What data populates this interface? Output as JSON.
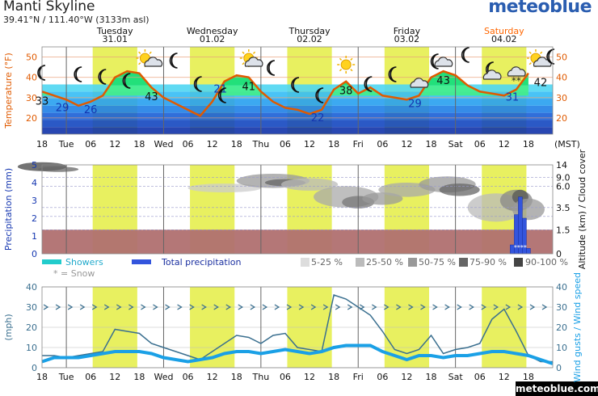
{
  "header": {
    "title": "Manti Skyline",
    "coords": "39.41°N / 111.40°W (3133m asl)",
    "brand": "meteoblue",
    "footer_brand": "meteoblue.com"
  },
  "days": [
    {
      "name": "Tuesday",
      "date": "31.01",
      "weekend": false
    },
    {
      "name": "Wednesday",
      "date": "01.02",
      "weekend": false
    },
    {
      "name": "Thursday",
      "date": "02.02",
      "weekend": false
    },
    {
      "name": "Friday",
      "date": "03.02",
      "weekend": false
    },
    {
      "name": "Saturday",
      "date": "04.02",
      "weekend": true
    }
  ],
  "x_ticks": [
    "18",
    "Tue",
    "06",
    "12",
    "18",
    "Wed",
    "06",
    "12",
    "18",
    "Thu",
    "06",
    "12",
    "18",
    "Fri",
    "06",
    "12",
    "18",
    "Sat",
    "06",
    "12",
    "18"
  ],
  "timezone": "(MST)",
  "colors": {
    "temp_line": "#e05a00",
    "weekend_day": "#ff6600",
    "daylight": "#e8f060",
    "precip": "#3355dd",
    "showers": "#22cccc",
    "wind_speed": "#1aa0e6",
    "wind_gust": "#3a6f8f",
    "below_ground": "#b07070"
  },
  "chart_data": [
    {
      "type": "area",
      "ylabel": "Temperature (°F)",
      "y_ticks": [
        20,
        30,
        40,
        50
      ],
      "ylim": [
        12,
        55
      ],
      "x_hours": [
        0,
        3,
        6,
        9,
        12,
        15,
        18,
        21,
        24,
        27,
        30,
        33,
        36,
        39,
        42,
        45,
        48,
        51,
        54,
        57,
        60,
        63,
        66,
        69,
        72,
        75,
        78,
        81,
        84,
        87,
        90,
        93,
        96,
        99,
        102,
        105,
        108,
        111,
        114,
        117,
        120
      ],
      "temperature": [
        33,
        31,
        29,
        26,
        28,
        31,
        40,
        43,
        42,
        35,
        30,
        27,
        24,
        21,
        28,
        38,
        41,
        40,
        33,
        28,
        25,
        24,
        22,
        24,
        34,
        38,
        32,
        35,
        31,
        30,
        29,
        31,
        40,
        43,
        41,
        36,
        33,
        32,
        31,
        34,
        42
      ],
      "labels": [
        {
          "hour": 0,
          "value": "33",
          "kind": "max"
        },
        {
          "hour": 5,
          "value": "29",
          "kind": "min"
        },
        {
          "hour": 12,
          "value": "26",
          "kind": "min"
        },
        {
          "hour": 27,
          "value": "43",
          "kind": "max"
        },
        {
          "hour": 44,
          "value": "21",
          "kind": "min"
        },
        {
          "hour": 51,
          "value": "41",
          "kind": "max"
        },
        {
          "hour": 68,
          "value": "22",
          "kind": "min"
        },
        {
          "hour": 75,
          "value": "38",
          "kind": "max"
        },
        {
          "hour": 92,
          "value": "29",
          "kind": "min"
        },
        {
          "hour": 99,
          "value": "43",
          "kind": "max"
        },
        {
          "hour": 116,
          "value": "31",
          "kind": "min"
        },
        {
          "hour": 123,
          "value": "42",
          "kind": "max"
        }
      ]
    },
    {
      "type": "bar",
      "ylabel": "Precipitation (mm)",
      "y_ticks": [
        0,
        1,
        2,
        3,
        4,
        5
      ],
      "ylim": [
        0,
        5
      ],
      "right_label": "Altitude (km) / Cloud cover",
      "right_ticks": [
        "14",
        "9.0",
        "6.0",
        "3.5",
        "1.5",
        "0"
      ],
      "precip_hours": [
        116,
        117,
        118,
        119,
        120
      ],
      "precip_values": [
        0.5,
        2.2,
        3.2,
        2.0,
        0.3
      ],
      "legend": [
        {
          "label": "Showers",
          "color": "#22cccc"
        },
        {
          "label": "Total precipitation",
          "color": "#3355dd"
        },
        {
          "label": "* = Snow",
          "color": "#aaaaaa"
        }
      ],
      "cloud_legend": [
        {
          "label": "5-25 %",
          "color": "#dddddd"
        },
        {
          "label": "25-50 %",
          "color": "#bbbbbb"
        },
        {
          "label": "50-75 %",
          "color": "#999999"
        },
        {
          "label": "75-90 %",
          "color": "#666666"
        },
        {
          "label": "90-100 %",
          "color": "#444444"
        }
      ]
    },
    {
      "type": "line",
      "ylabel": "(mph)",
      "right_label": "Wind gusts / Wind speed",
      "y_ticks": [
        0,
        10,
        20,
        30,
        40
      ],
      "ylim": [
        0,
        40
      ],
      "x_hours": [
        0,
        3,
        6,
        9,
        12,
        15,
        18,
        21,
        24,
        27,
        30,
        33,
        36,
        39,
        42,
        45,
        48,
        51,
        54,
        57,
        60,
        63,
        66,
        69,
        72,
        75,
        78,
        81,
        84,
        87,
        90,
        93,
        96,
        99,
        102,
        105,
        108,
        111,
        114,
        117,
        120,
        123,
        126
      ],
      "wind_gust": [
        6,
        6,
        5,
        6,
        7,
        8,
        19,
        18,
        17,
        12,
        10,
        8,
        6,
        4,
        8,
        12,
        16,
        15,
        12,
        16,
        17,
        10,
        9,
        8,
        36,
        34,
        30,
        26,
        18,
        9,
        7,
        9,
        16,
        7,
        9,
        10,
        12,
        24,
        29,
        18,
        6,
        3,
        3
      ],
      "wind_speed": [
        3,
        5,
        5,
        5,
        6,
        7,
        8,
        8,
        8,
        7,
        5,
        4,
        3,
        4,
        5,
        7,
        8,
        8,
        7,
        8,
        9,
        8,
        7,
        8,
        10,
        11,
        11,
        11,
        8,
        6,
        4,
        6,
        6,
        5,
        6,
        6,
        7,
        8,
        8,
        7,
        6,
        4,
        2
      ]
    }
  ]
}
